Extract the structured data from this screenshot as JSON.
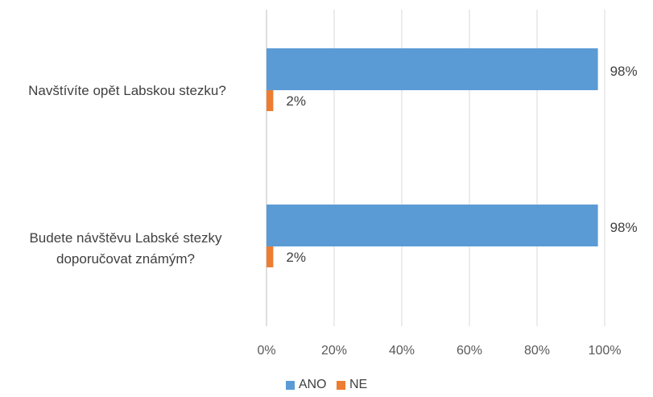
{
  "chart_data": {
    "type": "bar",
    "orientation": "horizontal",
    "categories": [
      "Navštívíte opět Labskou stezku?",
      "Budete návštěvu Labské stezky doporučovat známým?"
    ],
    "series": [
      {
        "name": "ANO",
        "color": "#5b9bd5",
        "values": [
          98,
          98
        ],
        "labels": [
          "98%",
          "98%"
        ]
      },
      {
        "name": "NE",
        "color": "#ed7d31",
        "values": [
          2,
          2
        ],
        "labels": [
          "2%",
          "2%"
        ]
      }
    ],
    "xlim": [
      0,
      100
    ],
    "x_ticks": [
      0,
      20,
      40,
      60,
      80,
      100
    ],
    "x_tick_labels": [
      "0%",
      "20%",
      "40%",
      "60%",
      "80%",
      "100%"
    ],
    "grid": true,
    "legend_position": "bottom"
  }
}
